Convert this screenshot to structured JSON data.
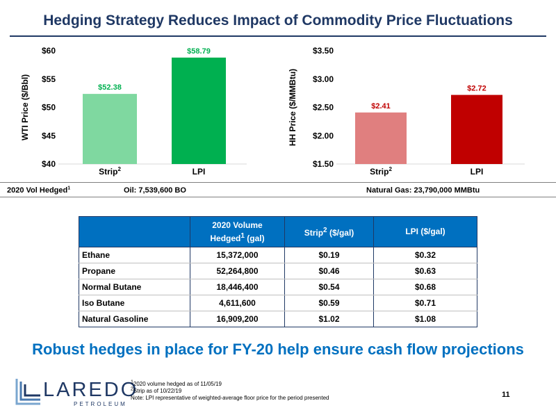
{
  "title": "Hedging Strategy Reduces Impact of Commodity Price Fluctuations",
  "chart_data": [
    {
      "type": "bar",
      "categories": [
        "Strip",
        "LPI"
      ],
      "category_superscripts": [
        "2",
        ""
      ],
      "values": [
        52.38,
        58.79
      ],
      "data_labels": [
        "$52.38",
        "$58.79"
      ],
      "ylabel": "WTI Price ($/Bbl)",
      "ylim": [
        40,
        60
      ],
      "yticks": [
        40,
        45,
        50,
        55,
        60
      ],
      "ytick_labels": [
        "$40",
        "$45",
        "$50",
        "$55",
        "$60"
      ],
      "colors": [
        "#7fd8a0",
        "#00b050"
      ],
      "label_color": "#00b050",
      "grid": false
    },
    {
      "type": "bar",
      "categories": [
        "Strip",
        "LPI"
      ],
      "category_superscripts": [
        "2",
        ""
      ],
      "values": [
        2.41,
        2.72
      ],
      "data_labels": [
        "$2.41",
        "$2.72"
      ],
      "ylabel": "HH Price ($/MMBtu)",
      "ylim": [
        1.5,
        3.5
      ],
      "yticks": [
        1.5,
        2.0,
        2.5,
        3.0,
        3.5
      ],
      "ytick_labels": [
        "$1.50",
        "$2.00",
        "$2.50",
        "$3.00",
        "$3.50"
      ],
      "colors": [
        "#e07f7f",
        "#c00000"
      ],
      "label_color": "#c00000",
      "grid": false
    }
  ],
  "volume": {
    "label": "2020 Vol Hedged",
    "label_sup": "1",
    "oil": "Oil: 7,539,600 BO",
    "gas": "Natural Gas: 23,790,000 MMBtu"
  },
  "table": {
    "headers": {
      "volume_line1": "2020 Volume",
      "volume_line2": "Hedged",
      "volume_sup": "1",
      "volume_unit": " (gal)",
      "strip": "Strip",
      "strip_sup": "2",
      "strip_unit": " ($/gal)",
      "lpi": "LPI ($/gal)"
    },
    "rows": [
      [
        "Ethane",
        "15,372,000",
        "$0.19",
        "$0.32"
      ],
      [
        "Propane",
        "52,264,800",
        "$0.46",
        "$0.63"
      ],
      [
        "Normal Butane",
        "18,446,400",
        "$0.54",
        "$0.68"
      ],
      [
        "Iso Butane",
        "4,611,600",
        "$0.59",
        "$0.71"
      ],
      [
        "Natural Gasoline",
        "16,909,200",
        "$1.02",
        "$1.08"
      ]
    ]
  },
  "tagline": "Robust hedges in place for FY-20 help ensure cash flow projections",
  "logo": {
    "name": "LAREDO",
    "sub": "PETROLEUM"
  },
  "footnotes": [
    {
      "sup": "1",
      "text": "2020 volume hedged as of 11/05/19"
    },
    {
      "sup": "2",
      "text": "Strip as of 10/22/19"
    },
    {
      "sup": "",
      "text": "Note: LPI representative of weighted-average floor price for the period presented"
    }
  ],
  "page_number": "11",
  "colors": {
    "title": "#1f3864",
    "accent": "#0070c0"
  }
}
